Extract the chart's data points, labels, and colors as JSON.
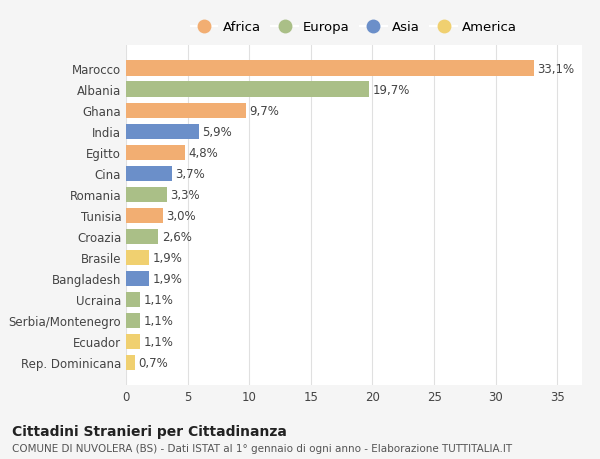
{
  "countries": [
    "Marocco",
    "Albania",
    "Ghana",
    "India",
    "Egitto",
    "Cina",
    "Romania",
    "Tunisia",
    "Croazia",
    "Brasile",
    "Bangladesh",
    "Ucraina",
    "Serbia/Montenegro",
    "Ecuador",
    "Rep. Dominicana"
  ],
  "values": [
    33.1,
    19.7,
    9.7,
    5.9,
    4.8,
    3.7,
    3.3,
    3.0,
    2.6,
    1.9,
    1.9,
    1.1,
    1.1,
    1.1,
    0.7
  ],
  "labels": [
    "33,1%",
    "19,7%",
    "9,7%",
    "5,9%",
    "4,8%",
    "3,7%",
    "3,3%",
    "3,0%",
    "2,6%",
    "1,9%",
    "1,9%",
    "1,1%",
    "1,1%",
    "1,1%",
    "0,7%"
  ],
  "continents": [
    "Africa",
    "Europa",
    "Africa",
    "Asia",
    "Africa",
    "Asia",
    "Europa",
    "Africa",
    "Europa",
    "America",
    "Asia",
    "Europa",
    "Europa",
    "America",
    "America"
  ],
  "continent_colors": {
    "Africa": "#F2AE72",
    "Europa": "#AABF87",
    "Asia": "#6B8FC9",
    "America": "#F0D070"
  },
  "legend_order": [
    "Africa",
    "Europa",
    "Asia",
    "America"
  ],
  "title": "Cittadini Stranieri per Cittadinanza",
  "subtitle": "COMUNE DI NUVOLERA (BS) - Dati ISTAT al 1° gennaio di ogni anno - Elaborazione TUTTITALIA.IT",
  "xlim": [
    0,
    37
  ],
  "xticks": [
    0,
    5,
    10,
    15,
    20,
    25,
    30,
    35
  ],
  "background_color": "#f5f5f5",
  "plot_background": "#ffffff",
  "grid_color": "#e0e0e0",
  "bar_height": 0.72,
  "label_fontsize": 8.5,
  "title_fontsize": 10,
  "subtitle_fontsize": 7.5,
  "tick_fontsize": 8.5,
  "legend_fontsize": 9.5
}
